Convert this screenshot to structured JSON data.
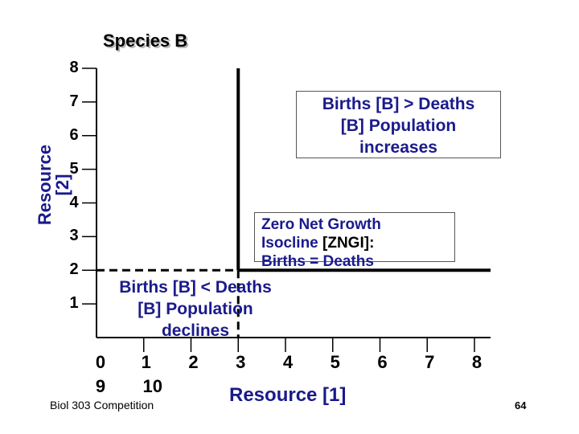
{
  "chart_data": {
    "type": "line",
    "title": "Species B",
    "xlabel": "Resource [1]",
    "ylabel": "Resource [2]",
    "xlim": [
      0,
      8
    ],
    "ylim": [
      0,
      8
    ],
    "y_ticks": [
      "1",
      "2",
      "3",
      "4",
      "5",
      "6",
      "7",
      "8"
    ],
    "x_ticks_row1": [
      "0",
      "1",
      "2",
      "3",
      "4",
      "5",
      "6",
      "7",
      "8"
    ],
    "x_ticks_row2": [
      "9",
      "10"
    ],
    "zngi": {
      "r1_star": 3,
      "r2_star": 2
    },
    "annotations": {
      "upper": [
        "Births [B] > Deaths",
        "[B] Population",
        "increases"
      ],
      "zngi": [
        "Zero Net Growth",
        "Isocline",
        "[ZNGI]:",
        "Births = Deaths"
      ],
      "lower": [
        "Births [B] < Deaths",
        "[B] Population",
        "declines"
      ]
    }
  },
  "footer": {
    "course": "Biol 303 Competition",
    "page": "64"
  },
  "colors": {
    "label_blue": "#1a1a8c",
    "axis": "#000000"
  }
}
